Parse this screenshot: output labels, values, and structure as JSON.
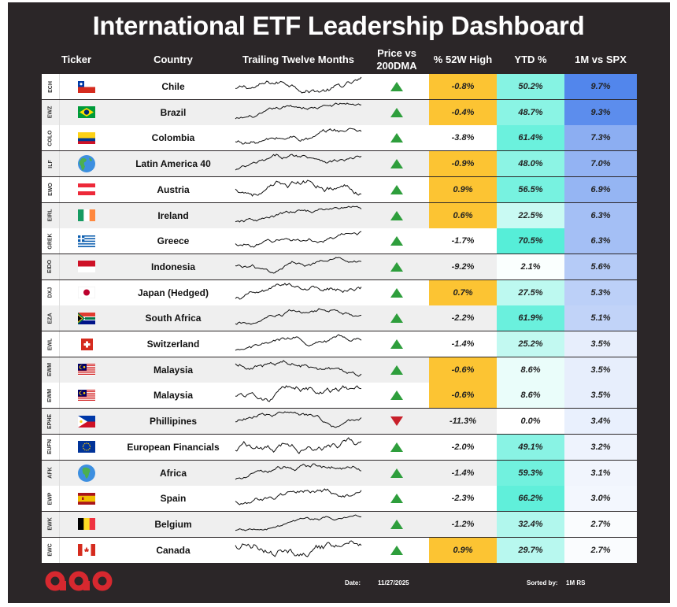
{
  "title": "International ETF Leadership Dashboard",
  "headers": {
    "ticker": "Ticker",
    "country": "Country",
    "trailing": "Trailing Twelve Months",
    "price_line1": "Price vs",
    "price_line2": "200DMA",
    "pct52": "% 52W High",
    "ytd": "YTD %",
    "spx": "1M vs SPX"
  },
  "colors": {
    "frame": "#2b2628",
    "up": "#2e9e3c",
    "down": "#c8202a",
    "pct_highlight": "#fcc433",
    "logo": "#d7282f"
  },
  "chart_data": {
    "type": "table",
    "columns": [
      "Ticker",
      "Country",
      "Trailing Twelve Months",
      "Price vs 200DMA",
      "% 52W High",
      "YTD %",
      "1M vs SPX"
    ],
    "rows": [
      {
        "ticker": "ECH",
        "country": "Chile",
        "flag": "chile",
        "price_vs_200dma": "above",
        "pct_52w_high": "-0.8%",
        "ytd": "50.2%",
        "m1_vs_spx": "9.7%",
        "pct_hl": true
      },
      {
        "ticker": "EWZ",
        "country": "Brazil",
        "flag": "brazil",
        "price_vs_200dma": "above",
        "pct_52w_high": "-0.4%",
        "ytd": "48.7%",
        "m1_vs_spx": "9.3%",
        "pct_hl": true
      },
      {
        "ticker": "COLO",
        "country": "Colombia",
        "flag": "colombia",
        "price_vs_200dma": "above",
        "pct_52w_high": "-3.8%",
        "ytd": "61.4%",
        "m1_vs_spx": "7.3%",
        "pct_hl": false
      },
      {
        "ticker": "ILF",
        "country": "Latin America 40",
        "flag": "globe-americas",
        "price_vs_200dma": "above",
        "pct_52w_high": "-0.9%",
        "ytd": "48.0%",
        "m1_vs_spx": "7.0%",
        "pct_hl": true
      },
      {
        "ticker": "EWO",
        "country": "Austria",
        "flag": "austria",
        "price_vs_200dma": "above",
        "pct_52w_high": "0.9%",
        "ytd": "56.5%",
        "m1_vs_spx": "6.9%",
        "pct_hl": true
      },
      {
        "ticker": "EIRL",
        "country": "Ireland",
        "flag": "ireland",
        "price_vs_200dma": "above",
        "pct_52w_high": "0.6%",
        "ytd": "22.5%",
        "m1_vs_spx": "6.3%",
        "pct_hl": true
      },
      {
        "ticker": "GREK",
        "country": "Greece",
        "flag": "greece",
        "price_vs_200dma": "above",
        "pct_52w_high": "-1.7%",
        "ytd": "70.5%",
        "m1_vs_spx": "6.3%",
        "pct_hl": false
      },
      {
        "ticker": "EIDO",
        "country": "Indonesia",
        "flag": "indonesia",
        "price_vs_200dma": "above",
        "pct_52w_high": "-9.2%",
        "ytd": "2.1%",
        "m1_vs_spx": "5.6%",
        "pct_hl": false
      },
      {
        "ticker": "DXJ",
        "country": "Japan (Hedged)",
        "flag": "japan",
        "price_vs_200dma": "above",
        "pct_52w_high": "0.7%",
        "ytd": "27.5%",
        "m1_vs_spx": "5.3%",
        "pct_hl": true
      },
      {
        "ticker": "EZA",
        "country": "South Africa",
        "flag": "south-africa",
        "price_vs_200dma": "above",
        "pct_52w_high": "-2.2%",
        "ytd": "61.9%",
        "m1_vs_spx": "5.1%",
        "pct_hl": false
      },
      {
        "ticker": "EWL",
        "country": "Switzerland",
        "flag": "switzerland",
        "price_vs_200dma": "above",
        "pct_52w_high": "-1.4%",
        "ytd": "25.2%",
        "m1_vs_spx": "3.5%",
        "pct_hl": false
      },
      {
        "ticker": "EWM",
        "country": "Malaysia",
        "flag": "malaysia",
        "price_vs_200dma": "above",
        "pct_52w_high": "-0.6%",
        "ytd": "8.6%",
        "m1_vs_spx": "3.5%",
        "pct_hl": true
      },
      {
        "ticker": "EWM",
        "country": "Malaysia",
        "flag": "malaysia",
        "price_vs_200dma": "above",
        "pct_52w_high": "-0.6%",
        "ytd": "8.6%",
        "m1_vs_spx": "3.5%",
        "pct_hl": true
      },
      {
        "ticker": "EPHE",
        "country": "Phillipines",
        "flag": "philippines",
        "price_vs_200dma": "below",
        "pct_52w_high": "-11.3%",
        "ytd": "0.0%",
        "m1_vs_spx": "3.4%",
        "pct_hl": false
      },
      {
        "ticker": "EUFN",
        "country": "European Financials",
        "flag": "eu",
        "price_vs_200dma": "above",
        "pct_52w_high": "-2.0%",
        "ytd": "49.1%",
        "m1_vs_spx": "3.2%",
        "pct_hl": false
      },
      {
        "ticker": "AFK",
        "country": "Africa",
        "flag": "globe-africa",
        "price_vs_200dma": "above",
        "pct_52w_high": "-1.4%",
        "ytd": "59.3%",
        "m1_vs_spx": "3.1%",
        "pct_hl": false
      },
      {
        "ticker": "EWP",
        "country": "Spain",
        "flag": "spain",
        "price_vs_200dma": "above",
        "pct_52w_high": "-2.3%",
        "ytd": "66.2%",
        "m1_vs_spx": "3.0%",
        "pct_hl": false
      },
      {
        "ticker": "EWK",
        "country": "Belgium",
        "flag": "belgium",
        "price_vs_200dma": "above",
        "pct_52w_high": "-1.2%",
        "ytd": "32.4%",
        "m1_vs_spx": "2.7%",
        "pct_hl": false
      },
      {
        "ticker": "EWC",
        "country": "Canada",
        "flag": "canada",
        "price_vs_200dma": "above",
        "pct_52w_high": "0.9%",
        "ytd": "29.7%",
        "m1_vs_spx": "2.7%",
        "pct_hl": true
      }
    ]
  },
  "footer": {
    "date_label": "Date:",
    "date_value": "11/27/2025",
    "sorted_label": "Sorted by:",
    "sorted_value": "1M RS"
  }
}
